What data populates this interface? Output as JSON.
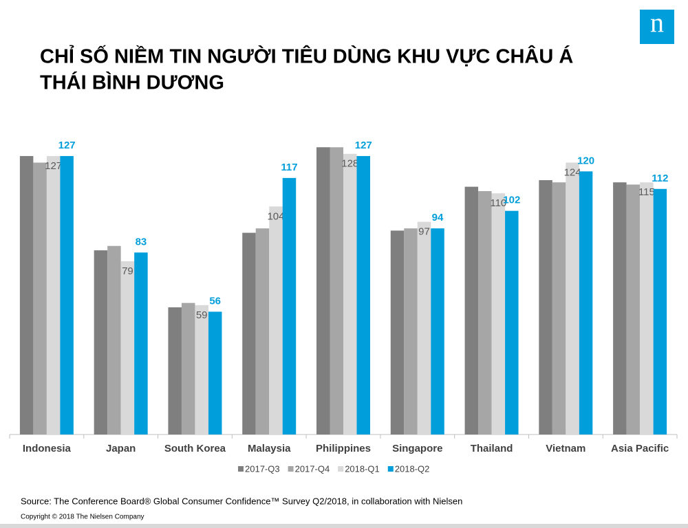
{
  "logo": "n",
  "chart_data": {
    "type": "bar",
    "title": [
      "CHỈ SỐ NIỀM TIN NGƯỜI TIÊU DÙNG KHU VỰC CHÂU Á",
      "THÁI BÌNH DƯƠNG"
    ],
    "categories": [
      "Indonesia",
      "Japan",
      "South Korea",
      "Malaysia",
      "Philippines",
      "Singapore",
      "Thailand",
      "Vietnam",
      "Asia Pacific"
    ],
    "series": [
      {
        "name": "2017-Q3",
        "color": "#7f7f7f",
        "show_values": false,
        "values": [
          127,
          84,
          58,
          92,
          131,
          93,
          113,
          116,
          115
        ]
      },
      {
        "name": "2017-Q4",
        "color": "#a6a6a6",
        "show_values": false,
        "values": [
          124,
          86,
          60,
          94,
          131,
          94,
          111,
          115,
          114
        ]
      },
      {
        "name": "2018-Q1",
        "color": "#d9d9d9",
        "show_values": true,
        "label_color": "#595959",
        "values": [
          127,
          79,
          59,
          104,
          128,
          97,
          110,
          124,
          115
        ]
      },
      {
        "name": "2018-Q2",
        "color": "#009fdb",
        "show_values": true,
        "label_color": "#009fdb",
        "values": [
          127,
          83,
          56,
          117,
          127,
          94,
          102,
          120,
          112
        ]
      }
    ],
    "ylim": [
      0,
      140
    ],
    "source": "Source: The Conference Board® Global Consumer Confidence™ Survey Q2/2018, in collaboration with Nielsen",
    "copyright": "Copyright © 2018 The Nielsen Company"
  }
}
